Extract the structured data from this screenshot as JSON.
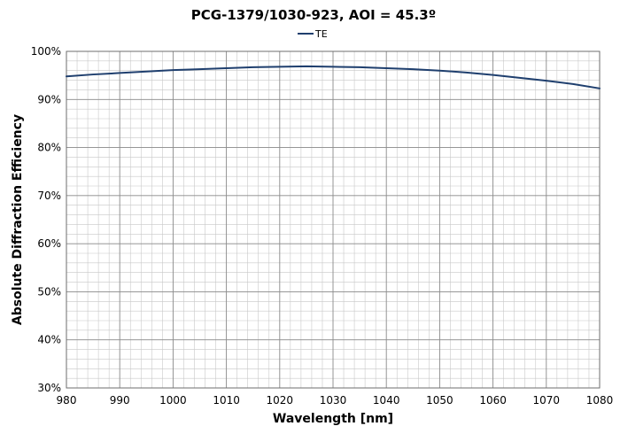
{
  "chart_data": {
    "type": "line",
    "title": "PCG-1379/1030-923, AOI = 45.3º",
    "xlabel": "Wavelength [nm]",
    "ylabel": "Absolute Diffraction Efficiency",
    "xlim": [
      980,
      1080
    ],
    "ylim": [
      0.3,
      1.0
    ],
    "x_ticks": [
      980,
      990,
      1000,
      1010,
      1020,
      1030,
      1040,
      1050,
      1060,
      1070,
      1080
    ],
    "x_tick_labels": [
      "980",
      "990",
      "1000",
      "1010",
      "1020",
      "1030",
      "1040",
      "1050",
      "1060",
      "1070",
      "1080"
    ],
    "y_ticks": [
      0.3,
      0.4,
      0.5,
      0.6,
      0.7,
      0.8,
      0.9,
      1.0
    ],
    "y_tick_labels": [
      "30%",
      "40%",
      "50%",
      "60%",
      "70%",
      "80%",
      "90%",
      "100%"
    ],
    "x_minor_step": 2,
    "y_minor_step": 0.02,
    "grid": true,
    "legend": "top-center",
    "series": [
      {
        "name": "TE",
        "color": "#1f3f6e",
        "x": [
          980,
          985,
          990,
          995,
          1000,
          1005,
          1010,
          1015,
          1020,
          1025,
          1030,
          1035,
          1040,
          1045,
          1050,
          1055,
          1060,
          1065,
          1070,
          1075,
          1080
        ],
        "y": [
          0.948,
          0.952,
          0.955,
          0.958,
          0.961,
          0.963,
          0.965,
          0.967,
          0.968,
          0.969,
          0.968,
          0.967,
          0.965,
          0.963,
          0.96,
          0.956,
          0.951,
          0.945,
          0.939,
          0.932,
          0.923
        ]
      }
    ]
  }
}
